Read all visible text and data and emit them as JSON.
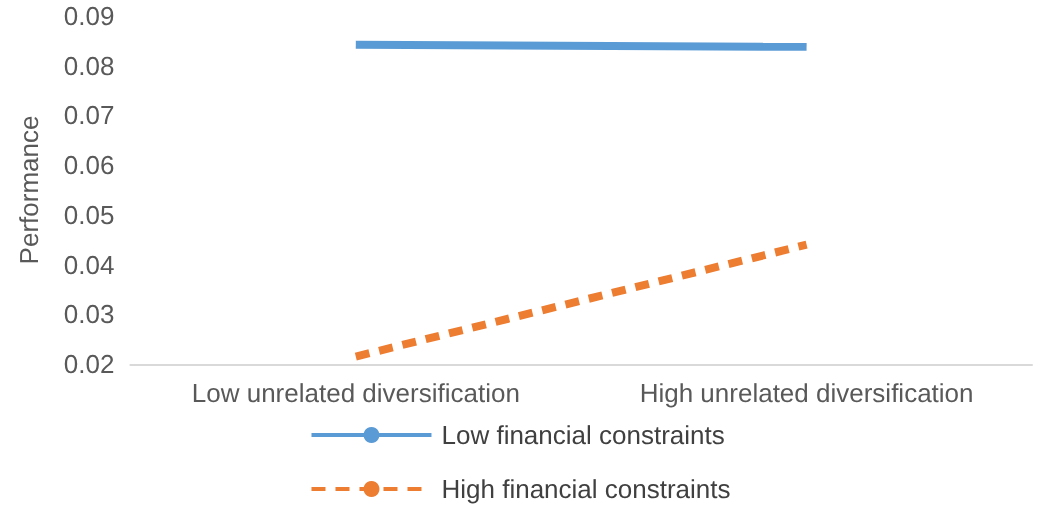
{
  "chart_data": {
    "type": "line",
    "ylabel": "Performance",
    "categories": [
      "Low unrelated diversification",
      "High unrelated diversification"
    ],
    "series": [
      {
        "name": "Low financial constraints",
        "color": "#5b9bd5",
        "line_style": "solid",
        "values": [
          0.0842,
          0.0838
        ]
      },
      {
        "name": "High financial constraints",
        "color": "#ed7d31",
        "line_style": "dashed",
        "values": [
          0.0215,
          0.044
        ]
      }
    ],
    "ylim": [
      0.02,
      0.09
    ],
    "yticks": [
      0.02,
      0.03,
      0.04,
      0.05,
      0.06,
      0.07,
      0.08,
      0.09
    ],
    "grid": false,
    "legend": "bottom",
    "marker": "none"
  }
}
